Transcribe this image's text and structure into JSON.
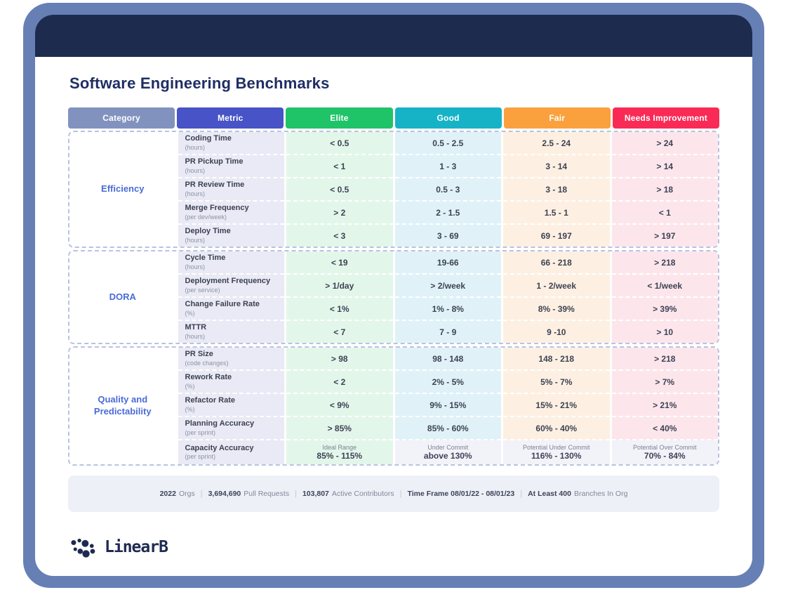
{
  "title": "Software Engineering Benchmarks",
  "table": {
    "neutral_tint": "#f2f2f9",
    "columns": [
      {
        "id": "category",
        "label": "Category",
        "color": "#8292bf",
        "tint": "#ffffff"
      },
      {
        "id": "metric",
        "label": "Metric",
        "color": "#4753c6",
        "tint": "#e9eaf5"
      },
      {
        "id": "elite",
        "label": "Elite",
        "color": "#1fc468",
        "tint": "#e3f6ea"
      },
      {
        "id": "good",
        "label": "Good",
        "color": "#16b3c7",
        "tint": "#e0f2f8"
      },
      {
        "id": "fair",
        "label": "Fair",
        "color": "#faa13d",
        "tint": "#fdf0e2"
      },
      {
        "id": "needs_improvement",
        "label": "Needs Improvement",
        "color": "#f92b56",
        "tint": "#fce6ec"
      }
    ],
    "sections": [
      {
        "category": "Efficiency",
        "rows": [
          {
            "metric": "Coding Time",
            "unit": "(hours)",
            "elite": "< 0.5",
            "good": "0.5 - 2.5",
            "fair": "2.5 - 24",
            "needs_improvement": "> 24"
          },
          {
            "metric": "PR Pickup Time",
            "unit": "(hours)",
            "elite": "< 1",
            "good": "1 - 3",
            "fair": "3 - 14",
            "needs_improvement": "> 14"
          },
          {
            "metric": "PR Review Time",
            "unit": "(hours)",
            "elite": "< 0.5",
            "good": "0.5 - 3",
            "fair": "3 - 18",
            "needs_improvement": "> 18"
          },
          {
            "metric": "Merge Frequency",
            "unit": "(per dev/week)",
            "elite": "> 2",
            "good": "2 - 1.5",
            "fair": "1.5 - 1",
            "needs_improvement": "< 1"
          },
          {
            "metric": "Deploy Time",
            "unit": "(hours)",
            "elite": "< 3",
            "good": "3 - 69",
            "fair": "69 - 197",
            "needs_improvement": "> 197"
          }
        ]
      },
      {
        "category": "DORA",
        "rows": [
          {
            "metric": "Cycle Time",
            "unit": "(hours)",
            "elite": "< 19",
            "good": "19-66",
            "fair": "66 - 218",
            "needs_improvement": "> 218"
          },
          {
            "metric": "Deployment Frequency",
            "unit": "(per service)",
            "elite": "> 1/day",
            "good": "> 2/week",
            "fair": "1 - 2/week",
            "needs_improvement": "< 1/week"
          },
          {
            "metric": "Change Failure Rate",
            "unit": "(%)",
            "elite": "< 1%",
            "good": "1% - 8%",
            "fair": "8% - 39%",
            "needs_improvement": "> 39%"
          },
          {
            "metric": "MTTR",
            "unit": "(hours)",
            "elite": "< 7",
            "good": "7 - 9",
            "fair": "9 -10",
            "needs_improvement": "> 10"
          }
        ]
      },
      {
        "category": "Quality and Predictability",
        "rows": [
          {
            "metric": "PR Size",
            "unit": "(code changes)",
            "elite": "> 98",
            "good": "98 - 148",
            "fair": "148 - 218",
            "needs_improvement": "> 218"
          },
          {
            "metric": "Rework Rate",
            "unit": "(%)",
            "elite": "< 2",
            "good": "2% - 5%",
            "fair": "5% - 7%",
            "needs_improvement": "> 7%"
          },
          {
            "metric": "Refactor Rate",
            "unit": "(%)",
            "elite": "< 9%",
            "good": "9% - 15%",
            "fair": "15% - 21%",
            "needs_improvement": "> 21%"
          },
          {
            "metric": "Planning Accuracy",
            "unit": "(per sprint)",
            "elite": "> 85%",
            "good": "85% - 60%",
            "fair": "60% - 40%",
            "needs_improvement": "< 40%"
          },
          {
            "metric": "Capacity Accuracy",
            "unit": "(per sprint)",
            "elite": {
              "label": "Ideal Range",
              "value": "85% - 115%"
            },
            "good": {
              "label": "Under Commit",
              "value": "above 130%",
              "neutral": true
            },
            "fair": {
              "label": "Potential Under Commit",
              "value": "116% - 130%",
              "neutral": true
            },
            "needs_improvement": {
              "label": "Potential Over Commit",
              "value": "70% - 84%",
              "neutral": true
            }
          }
        ]
      }
    ]
  },
  "footer": {
    "separator": "|",
    "stats": [
      {
        "bold": "2022",
        "text": "Orgs"
      },
      {
        "bold": "3,694,690",
        "text": "Pull Requests"
      },
      {
        "bold": "103,807",
        "text": "Active Contributors"
      },
      {
        "bold": "Time Frame  08/01/22 - 08/01/23",
        "text": ""
      },
      {
        "bold": "At Least 400",
        "text": "Branches In Org"
      }
    ]
  },
  "logo": {
    "text": "LinearB"
  }
}
